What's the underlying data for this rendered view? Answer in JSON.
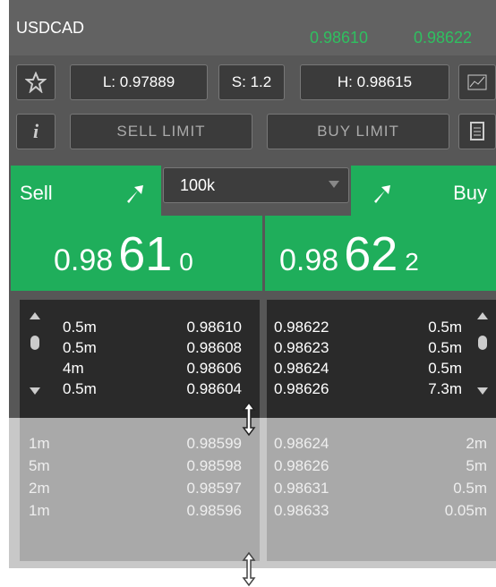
{
  "header": {
    "symbol": "USDCAD",
    "bid": "0.98610",
    "ask": "0.98622"
  },
  "stats": {
    "low": "L: 0.97889",
    "spread": "S: 1.2",
    "high": "H: 0.98615"
  },
  "buttons": {
    "info": "i",
    "sell_limit": "SELL LIMIT",
    "buy_limit": "BUY LIMIT"
  },
  "sell": {
    "label": "Sell",
    "price_big": "0.98",
    "price_pips": "61",
    "price_frac": "0"
  },
  "amount": "100k",
  "buy": {
    "label": "Buy",
    "price_big": "0.98",
    "price_pips": "62",
    "price_frac": "2"
  },
  "depth": {
    "bids": [
      [
        "0.5m",
        "0.98610"
      ],
      [
        "0.5m",
        "0.98608"
      ],
      [
        "4m",
        "0.98606"
      ],
      [
        "0.5m",
        "0.98604"
      ]
    ],
    "asks": [
      [
        "0.98622",
        "0.5m"
      ],
      [
        "0.98623",
        "0.5m"
      ],
      [
        "0.98624",
        "0.5m"
      ],
      [
        "0.98626",
        "7.3m"
      ]
    ]
  },
  "book": {
    "bids": [
      [
        "1m",
        "0.98599"
      ],
      [
        "5m",
        "0.98598"
      ],
      [
        "2m",
        "0.98597"
      ],
      [
        "1m",
        "0.98596"
      ]
    ],
    "asks": [
      [
        "0.98624",
        "2m"
      ],
      [
        "0.98626",
        "5m"
      ],
      [
        "0.98631",
        "0.5m"
      ],
      [
        "0.98633",
        "0.05m"
      ]
    ]
  }
}
